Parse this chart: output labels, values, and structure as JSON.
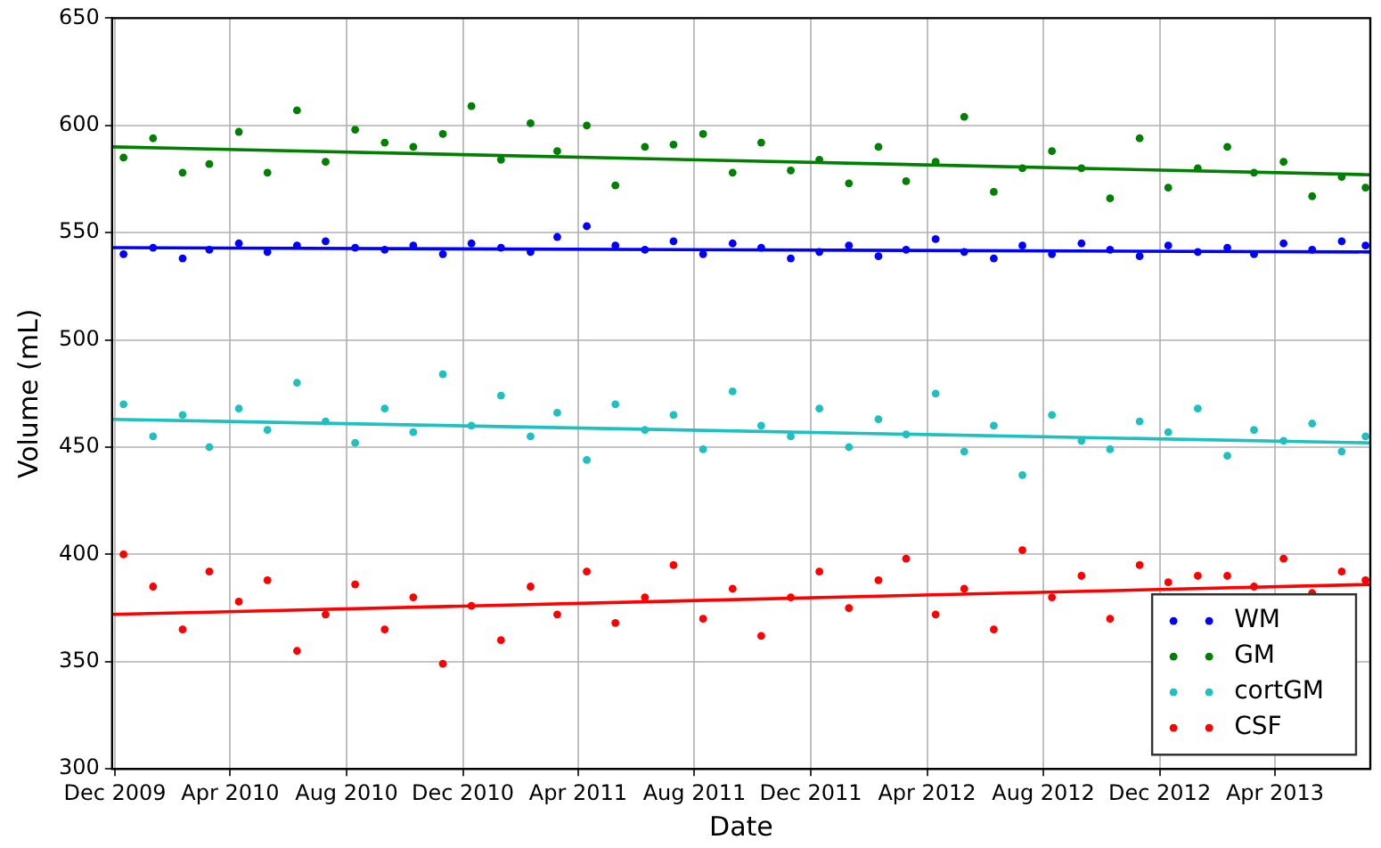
{
  "chart_data": {
    "type": "scatter",
    "xlabel": "Date",
    "ylabel": "Volume (mL)",
    "x": [
      "2009-12-10",
      "2010-01-10",
      "2010-02-10",
      "2010-03-10",
      "2010-04-10",
      "2010-05-10",
      "2010-06-10",
      "2010-07-10",
      "2010-08-10",
      "2010-09-10",
      "2010-10-10",
      "2010-11-10",
      "2010-12-10",
      "2011-01-10",
      "2011-02-10",
      "2011-03-10",
      "2011-04-10",
      "2011-05-10",
      "2011-06-10",
      "2011-07-10",
      "2011-08-10",
      "2011-09-10",
      "2011-10-10",
      "2011-11-10",
      "2011-12-10",
      "2012-01-10",
      "2012-02-10",
      "2012-03-10",
      "2012-04-10",
      "2012-05-10",
      "2012-06-10",
      "2012-07-10",
      "2012-08-10",
      "2012-09-10",
      "2012-10-10",
      "2012-11-10",
      "2012-12-10",
      "2013-01-10",
      "2013-02-10",
      "2013-03-10",
      "2013-04-10",
      "2013-05-10",
      "2013-06-10",
      "2013-07-05"
    ],
    "series": [
      {
        "name": "WM",
        "color": "#0000ff",
        "values": [
          540,
          543,
          538,
          542,
          545,
          541,
          544,
          546,
          543,
          542,
          544,
          540,
          545,
          543,
          541,
          548,
          553,
          544,
          542,
          546,
          540,
          545,
          543,
          538,
          541,
          544,
          539,
          542,
          547,
          541,
          538,
          544,
          540,
          545,
          542,
          539,
          544,
          541,
          543,
          540,
          545,
          542,
          546,
          544
        ]
      },
      {
        "name": "GM",
        "color": "#008000",
        "values": [
          585,
          594,
          578,
          582,
          597,
          578,
          607,
          583,
          598,
          592,
          590,
          596,
          609,
          584,
          601,
          588,
          600,
          572,
          590,
          591,
          596,
          578,
          592,
          579,
          584,
          573,
          590,
          574,
          583,
          604,
          569,
          580,
          588,
          580,
          566,
          594,
          571,
          580,
          590,
          578,
          583,
          567,
          576,
          571
        ]
      },
      {
        "name": "cortGM",
        "color": "#20c0c0",
        "values": [
          470,
          455,
          465,
          450,
          468,
          458,
          480,
          462,
          452,
          468,
          457,
          484,
          460,
          474,
          455,
          466,
          444,
          470,
          458,
          465,
          449,
          476,
          460,
          455,
          468,
          450,
          463,
          456,
          475,
          448,
          460,
          437,
          465,
          453,
          449,
          462,
          457,
          468,
          446,
          458,
          453,
          461,
          448,
          455
        ]
      },
      {
        "name": "CSF",
        "color": "#ff0000",
        "values": [
          400,
          385,
          365,
          392,
          378,
          388,
          355,
          372,
          386,
          365,
          380,
          349,
          376,
          360,
          385,
          372,
          392,
          368,
          380,
          395,
          370,
          384,
          362,
          380,
          392,
          375,
          388,
          398,
          372,
          384,
          365,
          402,
          380,
          390,
          370,
          395,
          387,
          390,
          390,
          385,
          398,
          382,
          392,
          388
        ]
      },
      {
        "type": "line",
        "marker": "none",
        "color": "#0000ff",
        "x": [
          "2009-11-28",
          "2013-07-10"
        ],
        "values": [
          543,
          541
        ]
      },
      {
        "type": "line",
        "marker": "none",
        "color": "#008000",
        "x": [
          "2009-11-28",
          "2013-07-10"
        ],
        "values": [
          590,
          577
        ]
      },
      {
        "type": "line",
        "marker": "none",
        "color": "#20c0c0",
        "x": [
          "2009-11-28",
          "2013-07-10"
        ],
        "values": [
          463,
          452
        ]
      },
      {
        "type": "line",
        "marker": "none",
        "color": "#ff0000",
        "x": [
          "2009-11-28",
          "2013-07-10"
        ],
        "values": [
          372,
          386
        ]
      }
    ],
    "xlim": [
      "2009-11-28",
      "2013-07-10"
    ],
    "xticks": [
      {
        "value": "2009-12-01",
        "label": "Dec 2009"
      },
      {
        "value": "2010-04-01",
        "label": "Apr 2010"
      },
      {
        "value": "2010-08-01",
        "label": "Aug 2010"
      },
      {
        "value": "2010-12-01",
        "label": "Dec 2010"
      },
      {
        "value": "2011-04-01",
        "label": "Apr 2011"
      },
      {
        "value": "2011-08-01",
        "label": "Aug 2011"
      },
      {
        "value": "2011-12-01",
        "label": "Dec 2011"
      },
      {
        "value": "2012-04-01",
        "label": "Apr 2012"
      },
      {
        "value": "2012-08-01",
        "label": "Aug 2012"
      },
      {
        "value": "2012-12-01",
        "label": "Dec 2012"
      },
      {
        "value": "2013-04-01",
        "label": "Apr 2013"
      }
    ],
    "ylim": [
      300,
      650
    ],
    "yticks": [
      300,
      350,
      400,
      450,
      500,
      550,
      600,
      650
    ],
    "grid": true,
    "legend": "bottom right",
    "marker": "circle",
    "line_style": "solid"
  }
}
